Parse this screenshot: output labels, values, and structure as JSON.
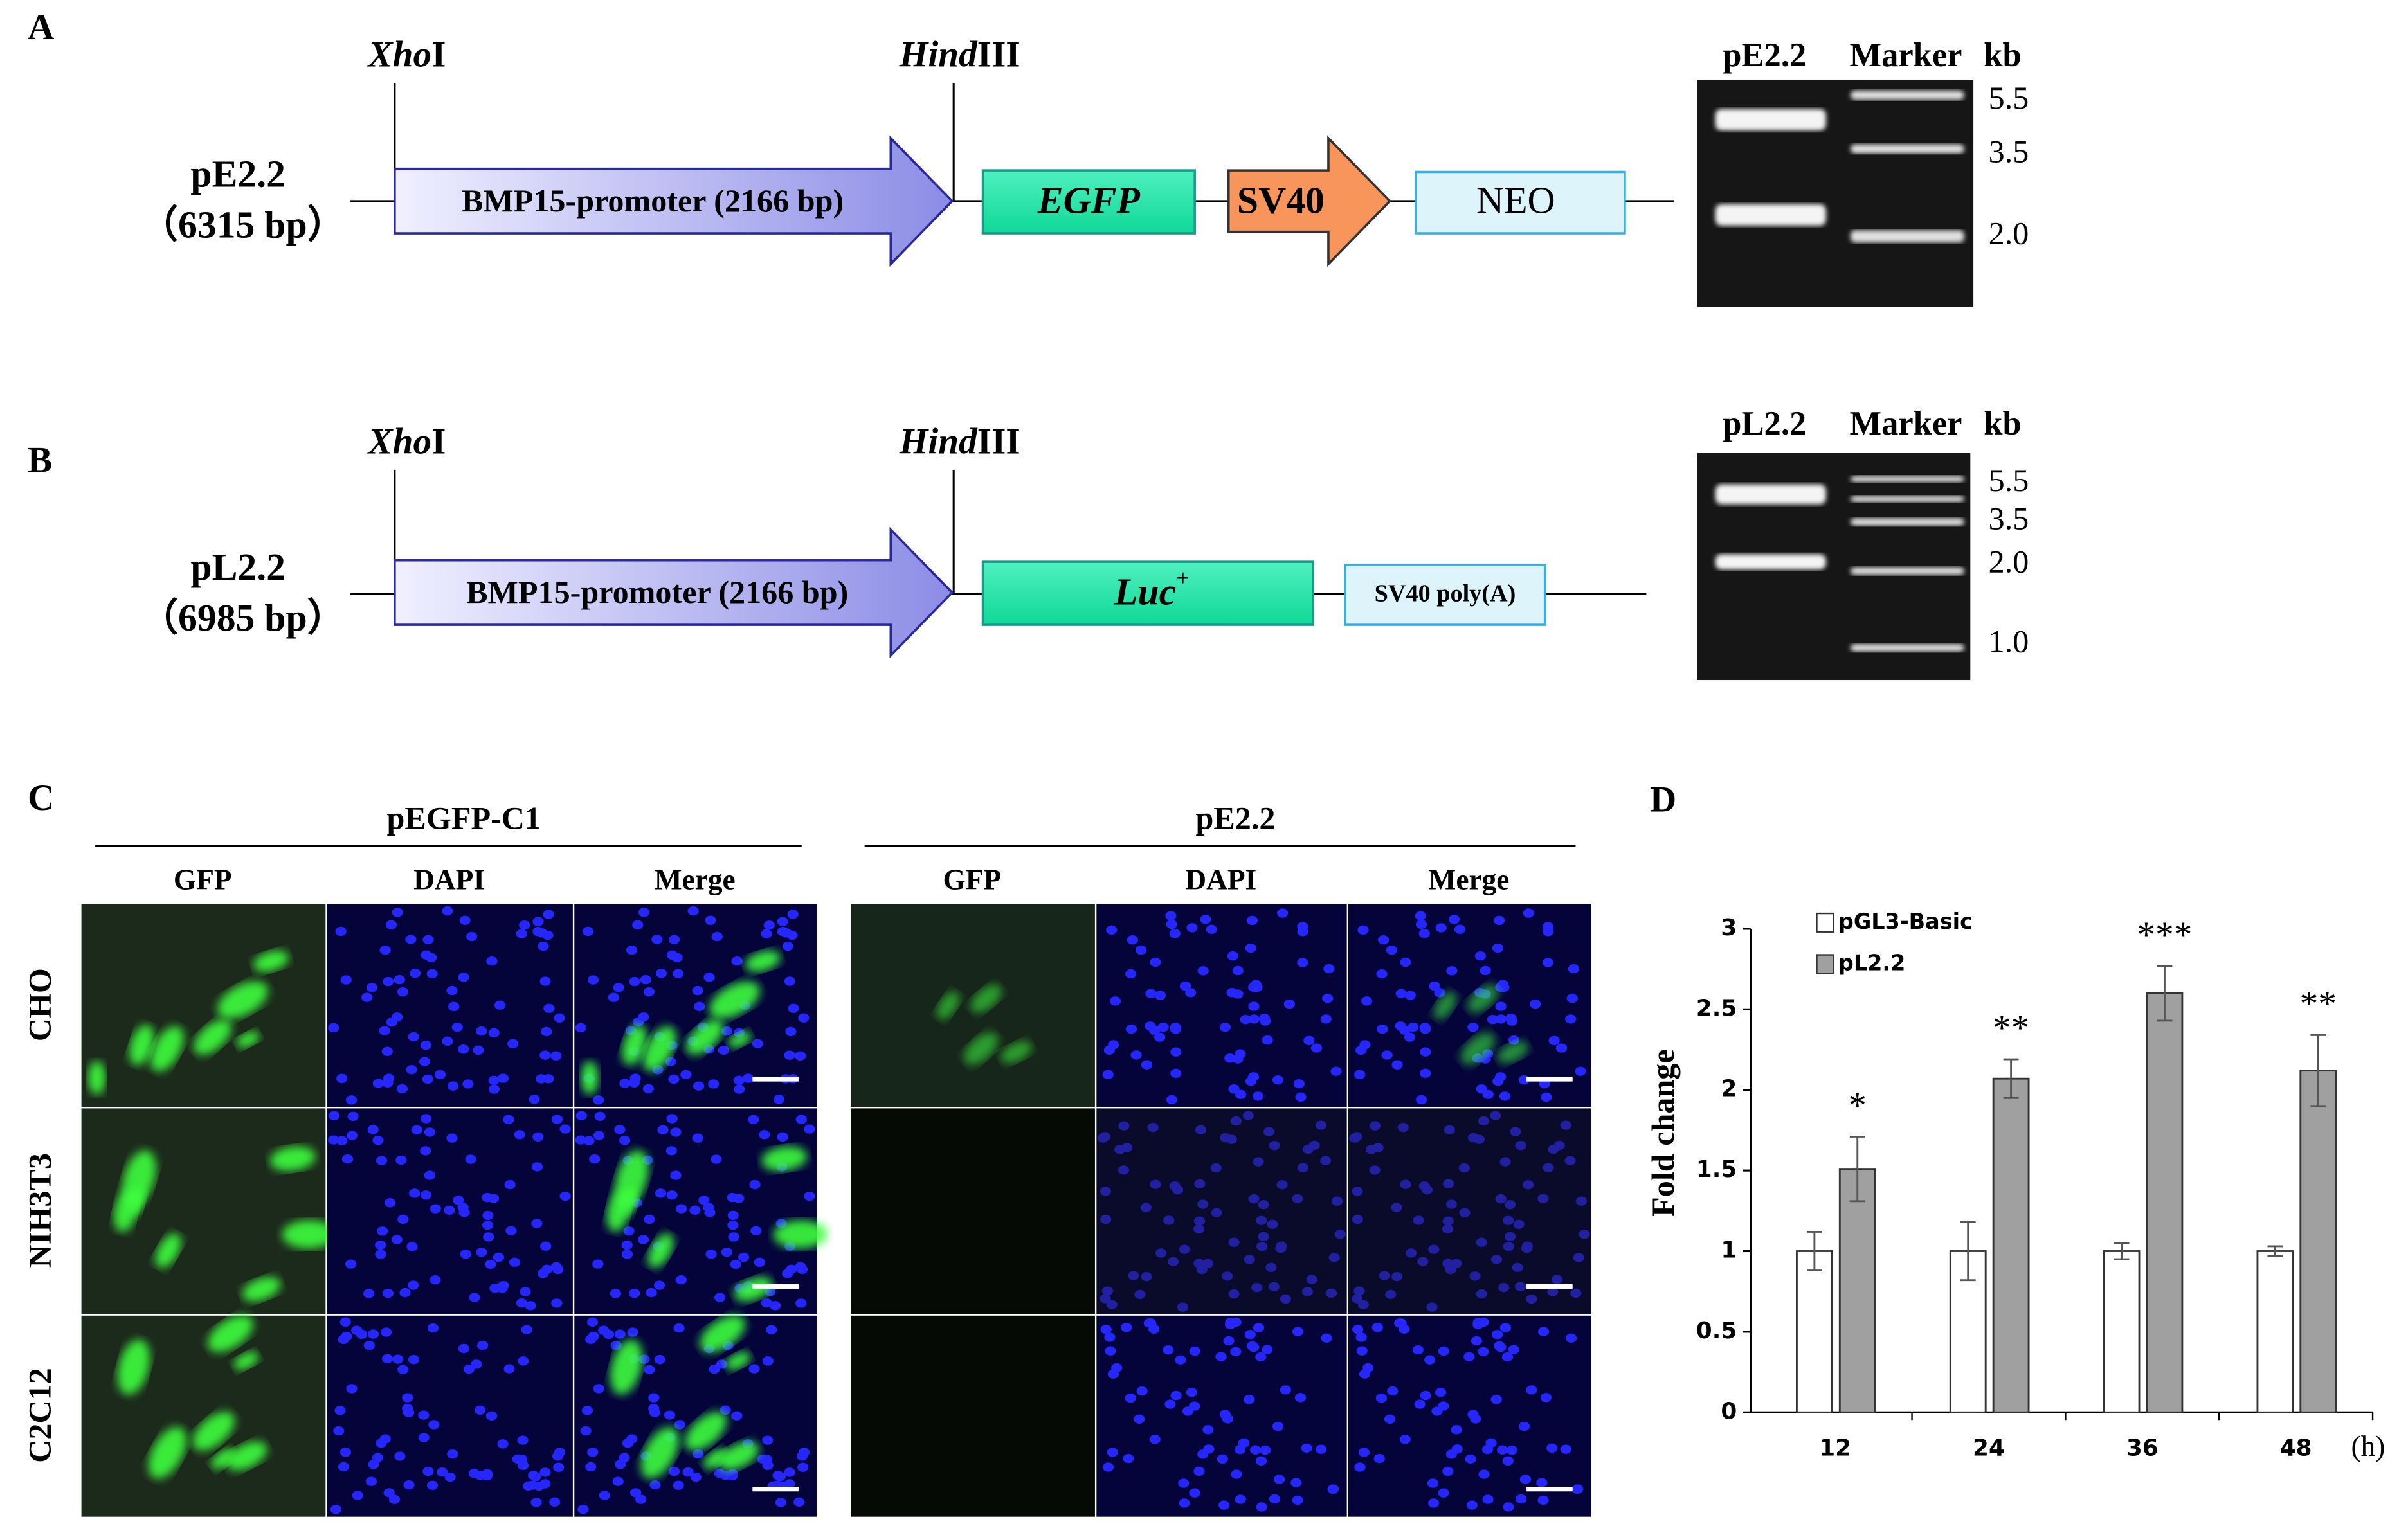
{
  "panel_a": {
    "label": "A",
    "plasmid": "pE2.2",
    "size": "（6315 bp）",
    "sites": [
      {
        "italic": "Xho",
        "plain": "I"
      },
      {
        "italic": "Hind",
        "plain": "III"
      }
    ],
    "promoter": "BMP15-promoter (2166 bp)",
    "reporter": "EGFP",
    "sv40": "SV40",
    "neo": "NEO",
    "gel": {
      "lanes": [
        "pE2.2",
        "Marker"
      ],
      "unit": "kb",
      "markers": [
        "5.5",
        "3.5",
        "2.0"
      ]
    }
  },
  "panel_b": {
    "label": "B",
    "plasmid": "pL2.2",
    "size": "（6985 bp）",
    "sites": [
      {
        "italic": "Xho",
        "plain": "I"
      },
      {
        "italic": "Hind",
        "plain": "III"
      }
    ],
    "promoter": "BMP15-promoter (2166 bp)",
    "reporter": {
      "italic": "Luc",
      "sup": "+"
    },
    "polya": "SV40 poly(A)",
    "gel": {
      "lanes": [
        "pL2.2",
        "Marker"
      ],
      "unit": "kb",
      "markers": [
        "5.5",
        "3.5",
        "2.0",
        "1.0"
      ]
    }
  },
  "panel_c": {
    "label": "C",
    "groups": [
      "pEGFP-C1",
      "pE2.2"
    ],
    "channels": [
      "GFP",
      "DAPI",
      "Merge"
    ],
    "cell_lines": [
      "CHO",
      "NIH3T3",
      "C2C12"
    ]
  },
  "chart_data": {
    "type": "bar",
    "title": "D",
    "y_label": "Fold change",
    "x_unit": "(h)",
    "categories": [
      "12",
      "24",
      "36",
      "48"
    ],
    "series": [
      {
        "name": "pGL3-Basic",
        "color": "#ffffff",
        "values": [
          1,
          1,
          1,
          1
        ],
        "errors": [
          0.12,
          0.18,
          0.05,
          0.03
        ]
      },
      {
        "name": "pL2.2",
        "color": "#a0a0a0",
        "values": [
          1.51,
          2.07,
          2.6,
          2.12
        ],
        "errors": [
          0.2,
          0.12,
          0.17,
          0.22
        ],
        "annotations": [
          "*",
          "**",
          "***",
          "**"
        ]
      }
    ],
    "ylim": [
      0,
      3
    ],
    "yticks": [
      0,
      0.5,
      1,
      1.5,
      2,
      2.5,
      3
    ]
  }
}
